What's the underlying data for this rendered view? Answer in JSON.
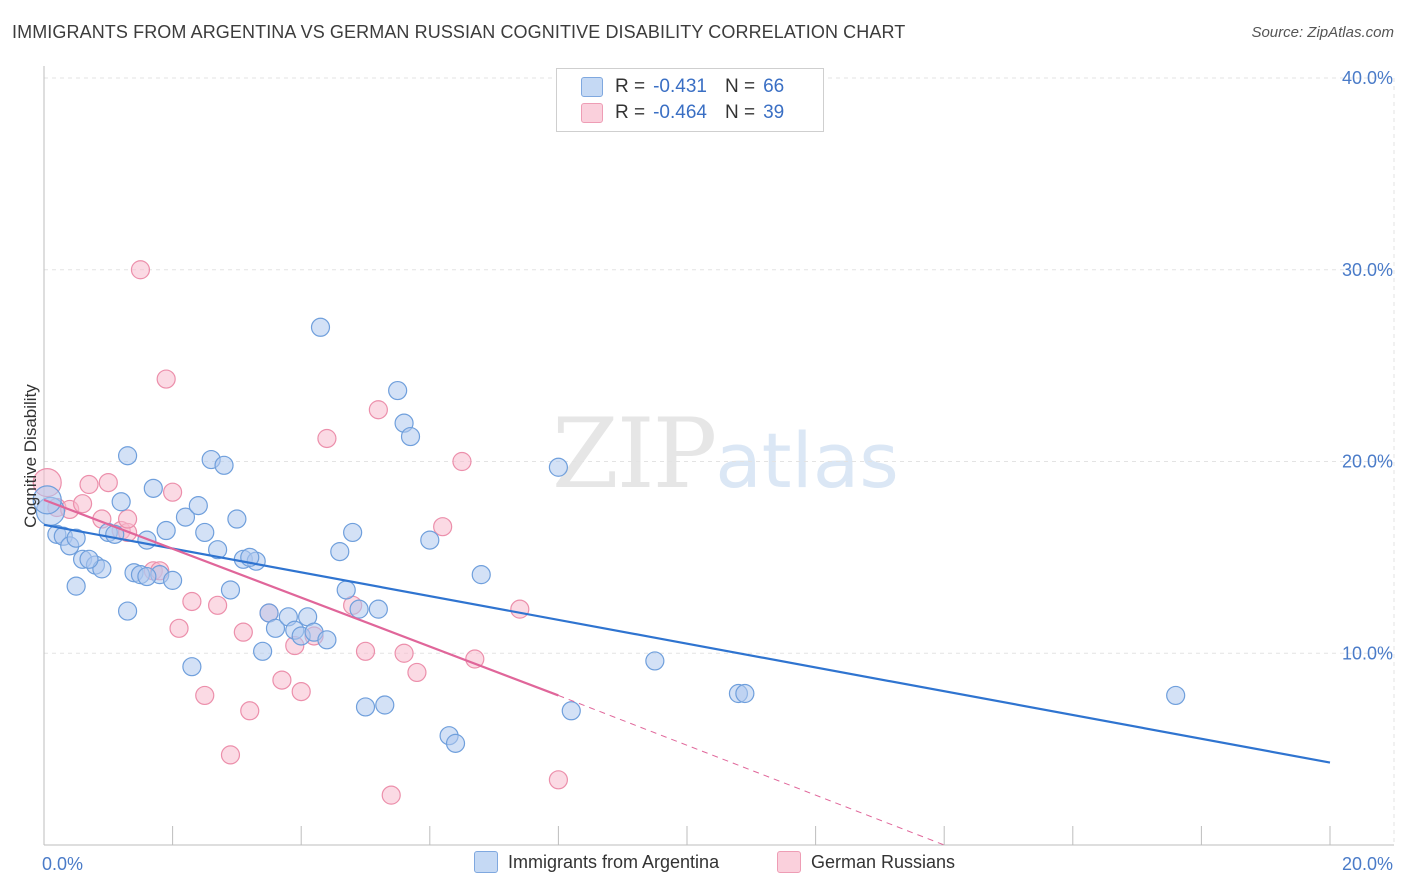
{
  "title": "IMMIGRANTS FROM ARGENTINA VS GERMAN RUSSIAN COGNITIVE DISABILITY CORRELATION CHART",
  "source": "Source: ZipAtlas.com",
  "watermark": {
    "zip": "ZIP",
    "atlas": "atlas"
  },
  "legend": {
    "r_label": "R =",
    "n_label": "N =",
    "rows": [
      {
        "r": "-0.431",
        "n": "66"
      },
      {
        "r": "-0.464",
        "n": "39"
      }
    ]
  },
  "colors": {
    "blue_fill": "#aec9ef",
    "blue_stroke": "#6f9fdc",
    "blue_line": "#2f74d0",
    "pink_fill": "#f7bccd",
    "pink_stroke": "#ec8fab",
    "pink_line": "#e0669a",
    "grid": "#e3e3e3"
  },
  "chart_data": {
    "type": "scatter",
    "ylabel": "Cognitive Disability",
    "xlim": [
      0,
      20
    ],
    "ylim": [
      0,
      40
    ],
    "x_tick_labels": [
      "0.0%",
      "20.0%"
    ],
    "y_ticks": [
      10,
      20,
      30,
      40
    ],
    "y_tick_labels": [
      "10.0%",
      "20.0%",
      "30.0%",
      "40.0%"
    ],
    "grid": true,
    "series": [
      {
        "name": "Immigrants from Argentina",
        "points": [
          [
            0.1,
            17.4
          ],
          [
            0.2,
            16.2
          ],
          [
            0.3,
            16.1
          ],
          [
            0.4,
            15.6
          ],
          [
            0.5,
            16.0
          ],
          [
            0.6,
            14.9
          ],
          [
            0.5,
            13.5
          ],
          [
            0.8,
            14.6
          ],
          [
            1.0,
            16.3
          ],
          [
            1.1,
            16.2
          ],
          [
            1.2,
            17.9
          ],
          [
            1.3,
            20.3
          ],
          [
            1.4,
            14.2
          ],
          [
            1.5,
            14.1
          ],
          [
            1.6,
            15.9
          ],
          [
            1.7,
            18.6
          ],
          [
            1.8,
            14.1
          ],
          [
            1.9,
            16.4
          ],
          [
            2.0,
            13.8
          ],
          [
            2.2,
            17.1
          ],
          [
            2.4,
            17.7
          ],
          [
            2.5,
            16.3
          ],
          [
            2.6,
            20.1
          ],
          [
            2.7,
            15.4
          ],
          [
            2.8,
            19.8
          ],
          [
            2.9,
            13.3
          ],
          [
            3.0,
            17.0
          ],
          [
            3.1,
            14.9
          ],
          [
            3.3,
            14.8
          ],
          [
            3.4,
            10.1
          ],
          [
            3.5,
            12.1
          ],
          [
            3.6,
            11.3
          ],
          [
            3.8,
            11.9
          ],
          [
            3.9,
            11.2
          ],
          [
            4.0,
            10.9
          ],
          [
            4.1,
            11.9
          ],
          [
            4.2,
            11.1
          ],
          [
            4.3,
            27.0
          ],
          [
            4.4,
            10.7
          ],
          [
            4.6,
            15.3
          ],
          [
            4.7,
            13.3
          ],
          [
            4.8,
            16.3
          ],
          [
            5.0,
            7.2
          ],
          [
            5.2,
            12.3
          ],
          [
            5.3,
            7.3
          ],
          [
            5.5,
            23.7
          ],
          [
            5.6,
            22.0
          ],
          [
            5.7,
            21.3
          ],
          [
            6.0,
            15.9
          ],
          [
            6.3,
            5.7
          ],
          [
            6.4,
            5.3
          ],
          [
            6.8,
            14.1
          ],
          [
            8.0,
            19.7
          ],
          [
            8.2,
            7.0
          ],
          [
            9.5,
            9.6
          ],
          [
            10.8,
            7.9
          ],
          [
            10.9,
            7.9
          ],
          [
            17.6,
            7.8
          ],
          [
            0.05,
            18.0
          ],
          [
            0.9,
            14.4
          ],
          [
            1.3,
            12.2
          ],
          [
            2.3,
            9.3
          ],
          [
            3.2,
            15.0
          ],
          [
            0.7,
            14.9
          ],
          [
            1.6,
            14.0
          ],
          [
            4.9,
            12.3
          ]
        ]
      },
      {
        "name": "German Russians",
        "points": [
          [
            0.05,
            18.9
          ],
          [
            0.2,
            17.6
          ],
          [
            0.4,
            17.5
          ],
          [
            0.6,
            17.8
          ],
          [
            0.7,
            18.8
          ],
          [
            0.9,
            17.0
          ],
          [
            1.0,
            18.9
          ],
          [
            1.2,
            16.4
          ],
          [
            1.3,
            16.3
          ],
          [
            1.3,
            17.0
          ],
          [
            1.5,
            30.0
          ],
          [
            1.7,
            14.3
          ],
          [
            1.8,
            14.3
          ],
          [
            1.9,
            24.3
          ],
          [
            2.0,
            18.4
          ],
          [
            2.1,
            11.3
          ],
          [
            2.3,
            12.7
          ],
          [
            2.5,
            7.8
          ],
          [
            2.7,
            12.5
          ],
          [
            2.9,
            4.7
          ],
          [
            3.2,
            7.0
          ],
          [
            3.1,
            11.1
          ],
          [
            3.5,
            12.1
          ],
          [
            3.7,
            8.6
          ],
          [
            3.9,
            10.4
          ],
          [
            4.0,
            8.0
          ],
          [
            4.2,
            10.9
          ],
          [
            4.4,
            21.2
          ],
          [
            4.8,
            12.5
          ],
          [
            5.0,
            10.1
          ],
          [
            5.2,
            22.7
          ],
          [
            5.4,
            2.6
          ],
          [
            5.6,
            10.0
          ],
          [
            5.8,
            9.0
          ],
          [
            6.2,
            16.6
          ],
          [
            6.5,
            20.0
          ],
          [
            6.7,
            9.7
          ],
          [
            7.4,
            12.3
          ],
          [
            8.0,
            3.4
          ]
        ]
      }
    ],
    "trend_lines": [
      {
        "series": "Immigrants from Argentina",
        "x0": 0,
        "y0": 16.7,
        "x1": 20,
        "y1": 4.3,
        "style": "solid"
      },
      {
        "series": "German Russians",
        "x0": 0,
        "y0": 18.0,
        "x1": 8,
        "y1": 7.8,
        "style": "solid"
      },
      {
        "series": "German Russians",
        "x0": 8,
        "y0": 7.8,
        "x1": 14,
        "y1": 0,
        "style": "dashed"
      }
    ]
  }
}
